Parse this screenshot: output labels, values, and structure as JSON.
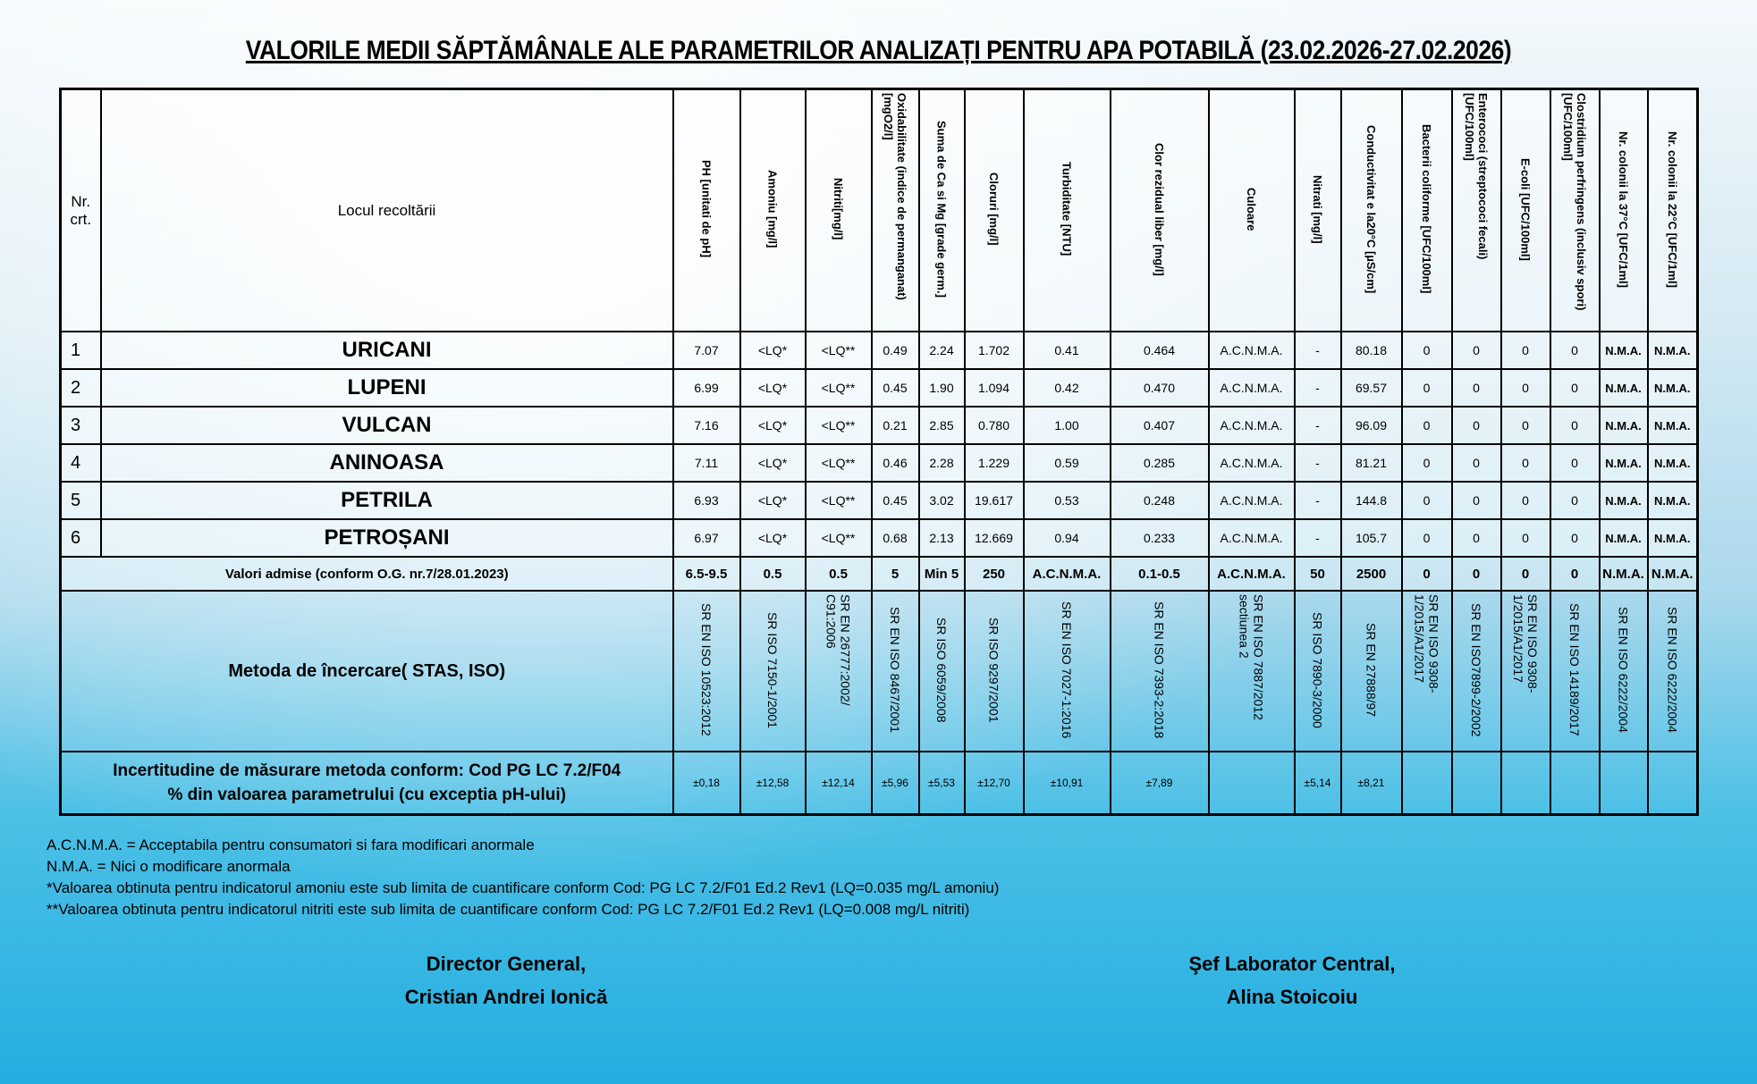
{
  "title": "VALORILE MEDII SĂPTĂMÂNALE ALE PARAMETRILOR ANALIZAȚI PENTRU APA POTABILĂ (23.02.2026-27.02.2026)",
  "table": {
    "headers": [
      "Nr. crt.",
      "Locul recoltării",
      "PH [unitati de pH]",
      "Amoniu [mg/l]",
      "Nitriti[mg/l]",
      "Oxidabilitate (indice de permanganat) [mgO2/l]",
      "Suma de Ca si Mg [grade germ.]",
      "Cloruri [mg/l]",
      "Turbiditate [NTU]",
      "Clor rezidual liber [mg/l]",
      "Culoare",
      "Nitrati [mg/l]",
      "Conductivitat e la20°C [µS/cm]",
      "Bacterii coliforme [UFC/100ml]",
      "Enterococi (streptococi fecali) [UFC/100ml]",
      "E-coli [UFC/100ml]",
      "Clostridium perfringens (inclusiv spori) [UFC/100ml]",
      "Nr. colonii la 37°C [UFC/1ml]",
      "Nr. colonii la 22°C [UFC/1ml]"
    ],
    "rows": [
      [
        "1",
        "URICANI",
        "7.07",
        "<LQ*",
        "<LQ**",
        "0.49",
        "2.24",
        "1.702",
        "0.41",
        "0.464",
        "A.C.N.M.A.",
        "-",
        "80.18",
        "0",
        "0",
        "0",
        "0",
        "N.M.A.",
        "N.M.A."
      ],
      [
        "2",
        "LUPENI",
        "6.99",
        "<LQ*",
        "<LQ**",
        "0.45",
        "1.90",
        "1.094",
        "0.42",
        "0.470",
        "A.C.N.M.A.",
        "-",
        "69.57",
        "0",
        "0",
        "0",
        "0",
        "N.M.A.",
        "N.M.A."
      ],
      [
        "3",
        "VULCAN",
        "7.16",
        "<LQ*",
        "<LQ**",
        "0.21",
        "2.85",
        "0.780",
        "1.00",
        "0.407",
        "A.C.N.M.A.",
        "-",
        "96.09",
        "0",
        "0",
        "0",
        "0",
        "N.M.A.",
        "N.M.A."
      ],
      [
        "4",
        "ANINOASA",
        "7.11",
        "<LQ*",
        "<LQ**",
        "0.46",
        "2.28",
        "1.229",
        "0.59",
        "0.285",
        "A.C.N.M.A.",
        "-",
        "81.21",
        "0",
        "0",
        "0",
        "0",
        "N.M.A.",
        "N.M.A."
      ],
      [
        "5",
        "PETRILA",
        "6.93",
        "<LQ*",
        "<LQ**",
        "0.45",
        "3.02",
        "19.617",
        "0.53",
        "0.248",
        "A.C.N.M.A.",
        "-",
        "144.8",
        "0",
        "0",
        "0",
        "0",
        "N.M.A.",
        "N.M.A."
      ],
      [
        "6",
        "PETROȘANI",
        "6.97",
        "<LQ*",
        "<LQ**",
        "0.68",
        "2.13",
        "12.669",
        "0.94",
        "0.233",
        "A.C.N.M.A.",
        "-",
        "105.7",
        "0",
        "0",
        "0",
        "0",
        "N.M.A.",
        "N.M.A."
      ]
    ],
    "admitted": {
      "label": "Valori admise (conform O.G. nr.7/28.01.2023)",
      "values": [
        "6.5-9.5",
        "0.5",
        "0.5",
        "5",
        "Min 5",
        "250",
        "A.C.N.M.A.",
        "0.1-0.5",
        "A.C.N.M.A.",
        "50",
        "2500",
        "0",
        "0",
        "0",
        "0",
        "N.M.A.",
        "N.M.A."
      ]
    },
    "method": {
      "label": "Metoda de încercare( STAS, ISO)",
      "values": [
        "SR EN ISO 10523:2012",
        "SR ISO 7150-1/2001",
        "SR EN 26777:2002/ C91:2006",
        "SR EN ISO 8467/2001",
        "SR ISO 6059/2008",
        "SR ISO 9297/2001",
        "SR EN ISO 7027-1:2016",
        "SR EN ISO 7393-2:2018",
        "SR EN ISO 7887/2012 sectiunea 2",
        "SR ISO 7890-3/2000",
        "SR EN 27888/97",
        "SR EN ISO 9308-1/2015/A1/2017",
        "SR EN ISO7899-2/2002",
        "SR EN ISO 9308-1/2015/A1/2017",
        "SR EN ISO 14189/2017",
        "SR EN ISO 6222/2004",
        "SR EN ISO 6222/2004"
      ]
    },
    "uncertainty": {
      "label": [
        "Incertitudine de măsurare metoda conform: Cod PG LC 7.2/F04",
        "% din valoarea parametrului (cu exceptia pH-ului)"
      ],
      "values": [
        "±0,18",
        "±12,58",
        "±12,14",
        "±5,96",
        "±5,53",
        "±12,70",
        "±10,91",
        "±7,89",
        null,
        "±5,14",
        "±8,21",
        null,
        null,
        null,
        null,
        null,
        null
      ]
    }
  },
  "notes": [
    "A.C.N.M.A. = Acceptabila pentru consumatori si fara modificari anormale",
    "N.M.A. = Nici o modificare anormala",
    "*Valoarea obtinuta pentru indicatorul amoniu este sub limita de cuantificare conform Cod: PG LC 7.2/F01 Ed.2 Rev1 (LQ=0.035 mg/L amoniu)",
    "**Valoarea obtinuta pentru indicatorul nitriti este sub limita de cuantificare conform Cod: PG LC 7.2/F01 Ed.2 Rev1 (LQ=0.008 mg/L nitriti)"
  ],
  "signatures": [
    {
      "role": "Director General,",
      "name": "Cristian Andrei Ionică"
    },
    {
      "role": "Şef Laborator Central,",
      "name": "Alina Stoicoiu"
    }
  ]
}
